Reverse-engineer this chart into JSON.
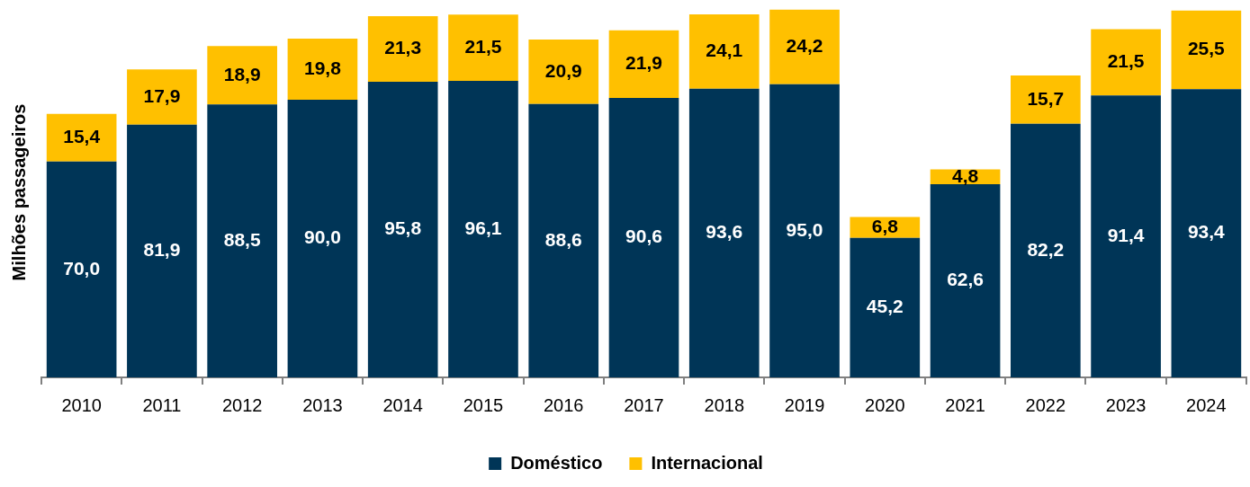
{
  "chart_data": {
    "type": "bar",
    "stacked": true,
    "ylabel": "Milhões passageiros",
    "categories": [
      "2010",
      "2011",
      "2012",
      "2013",
      "2014",
      "2015",
      "2016",
      "2017",
      "2018",
      "2019",
      "2020",
      "2021",
      "2022",
      "2023",
      "2024"
    ],
    "series": [
      {
        "name": "Doméstico",
        "color": "#003557",
        "values": [
          70.0,
          81.9,
          88.5,
          90.0,
          95.8,
          96.1,
          88.6,
          90.6,
          93.6,
          95.0,
          45.2,
          62.6,
          82.2,
          91.4,
          93.4
        ],
        "value_labels": [
          "70,0",
          "81,9",
          "88,5",
          "90,0",
          "95,8",
          "96,1",
          "88,6",
          "90,6",
          "93,6",
          "95,0",
          "45,2",
          "62,6",
          "82,2",
          "91,4",
          "93,4"
        ]
      },
      {
        "name": "Internacional",
        "color": "#ffc000",
        "values": [
          15.4,
          17.9,
          18.9,
          19.8,
          21.3,
          21.5,
          20.9,
          21.9,
          24.1,
          24.2,
          6.8,
          4.8,
          15.7,
          21.5,
          25.5
        ],
        "value_labels": [
          "15,4",
          "17,9",
          "18,9",
          "19,8",
          "21,3",
          "21,5",
          "20,9",
          "21,9",
          "24,1",
          "24,2",
          "6,8",
          "4,8",
          "15,7",
          "21,5",
          "25,5"
        ]
      }
    ],
    "tick_labels": "x",
    "legend": "bottom"
  }
}
